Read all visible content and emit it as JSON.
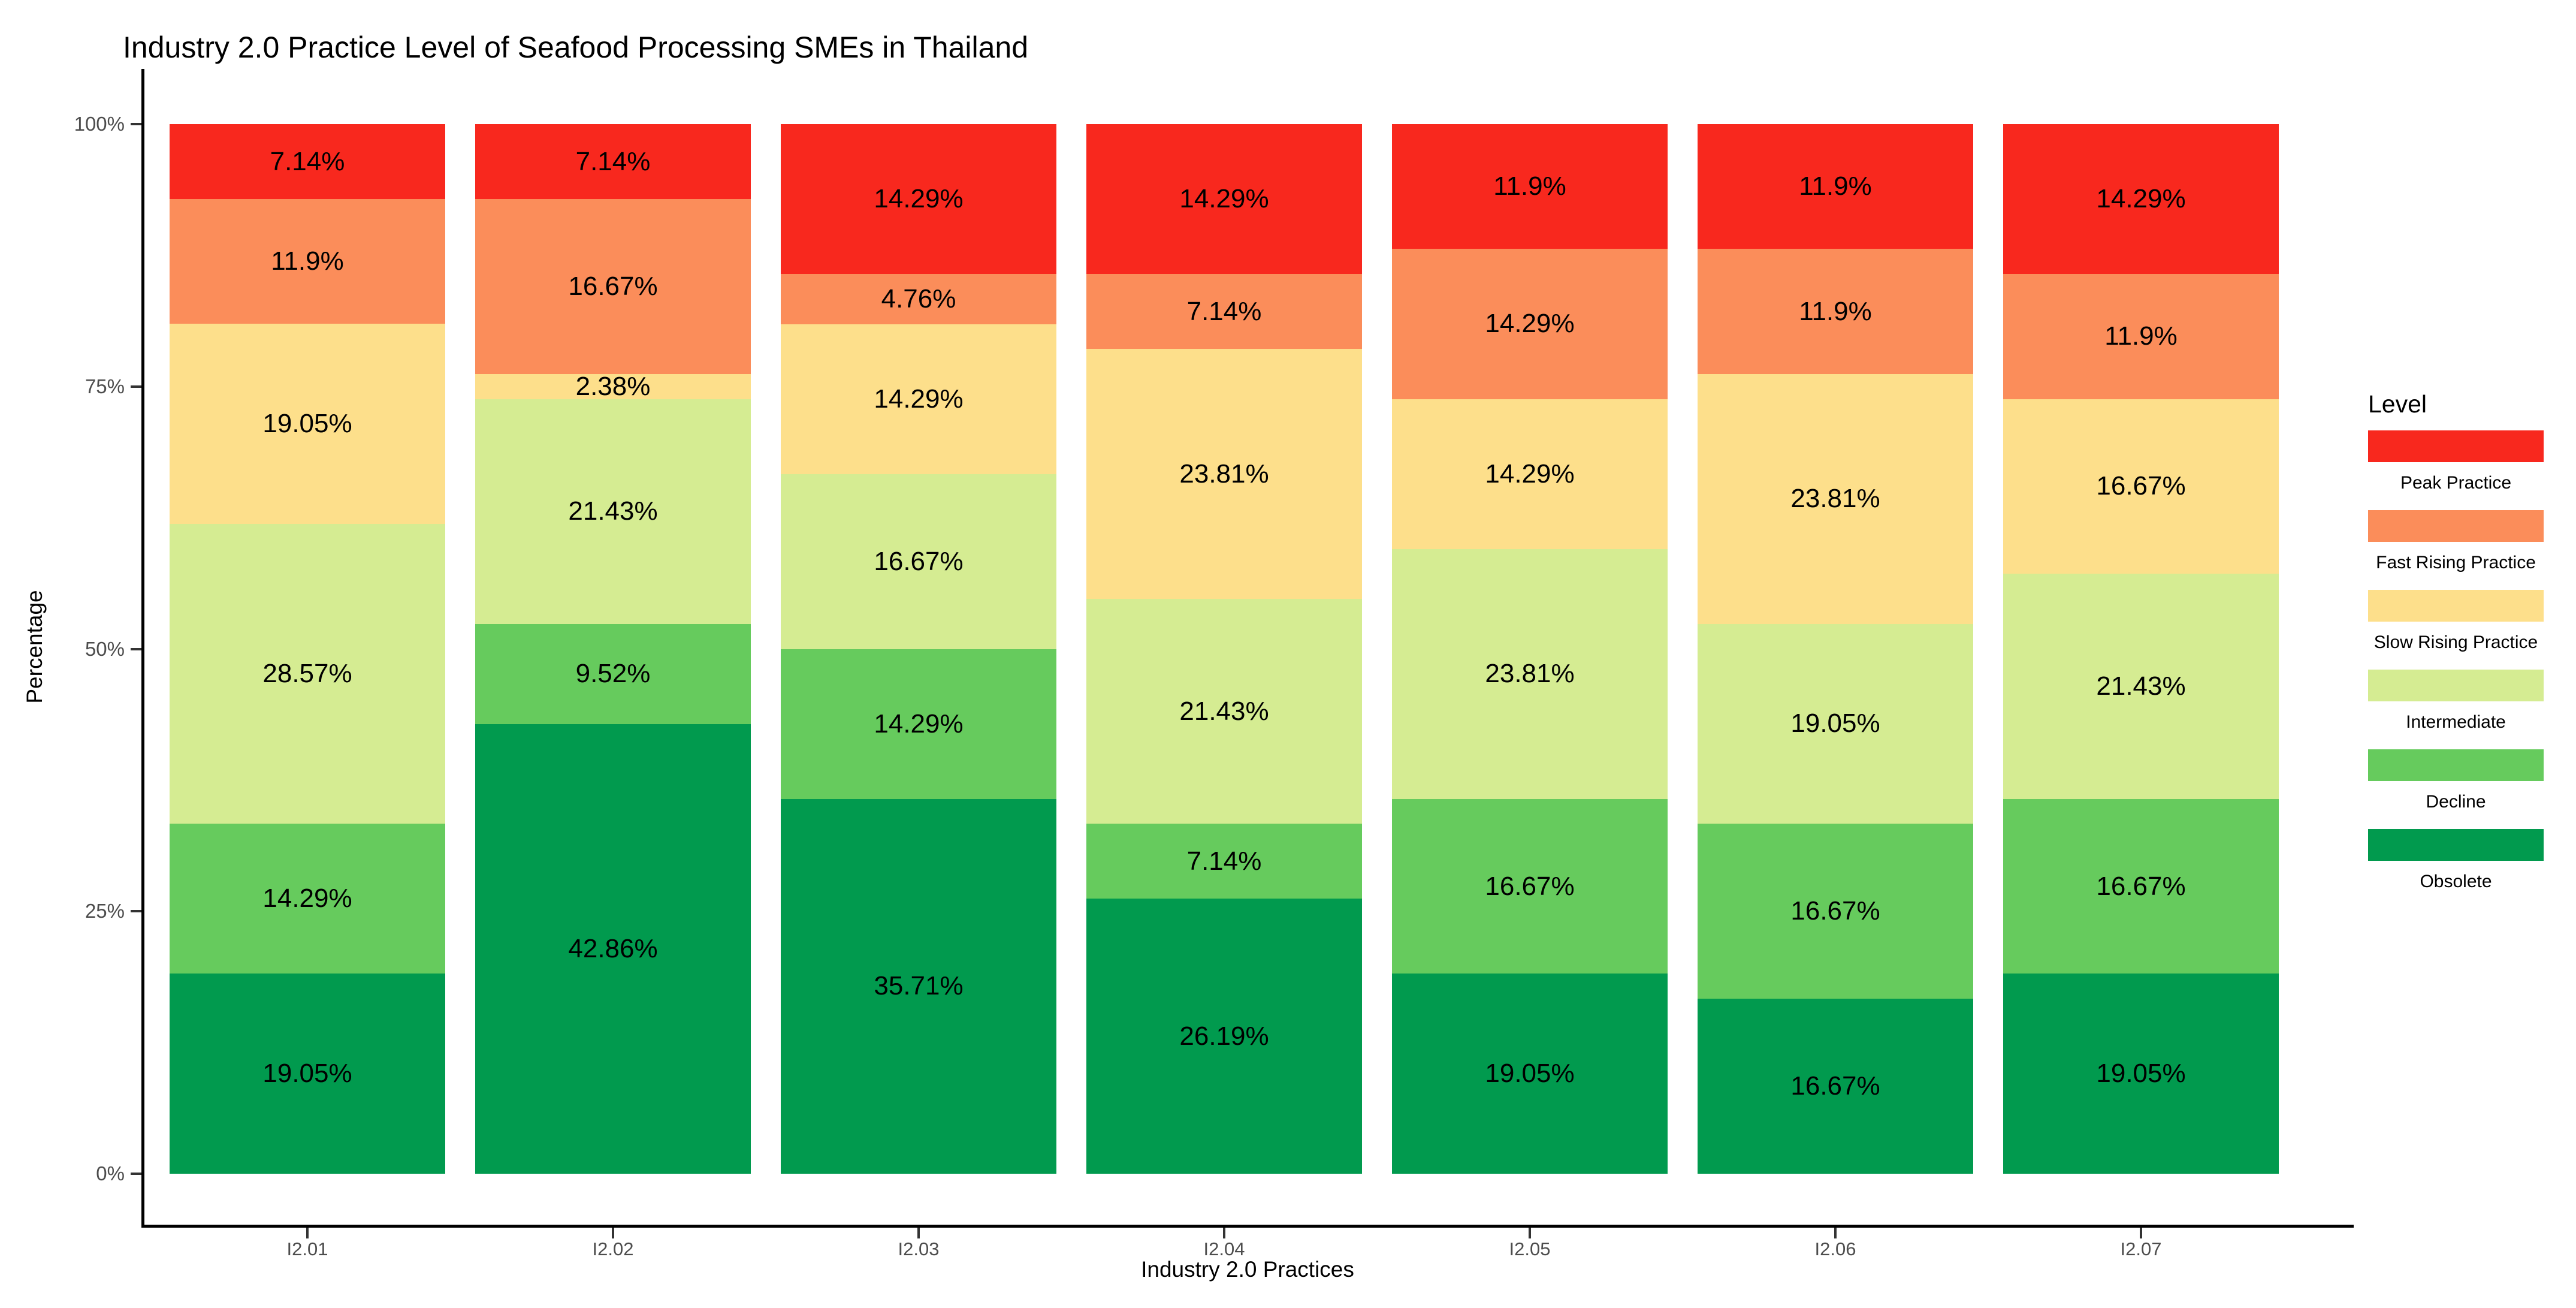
{
  "chart_data": {
    "type": "stacked-bar",
    "title": "Industry 2.0 Practice Level of Seafood Processing SMEs in Thailand",
    "xlabel": "Industry 2.0 Practices",
    "ylabel": "Percentage",
    "categories": [
      "I2.01",
      "I2.02",
      "I2.03",
      "I2.04",
      "I2.05",
      "I2.06",
      "I2.07"
    ],
    "ylim": [
      0,
      100
    ],
    "grid": false,
    "legend_position": "right",
    "legend_title": "Level",
    "y_ticks": [
      {
        "label": "0%",
        "value": 0
      },
      {
        "label": "25%",
        "value": 25
      },
      {
        "label": "50%",
        "value": 50
      },
      {
        "label": "75%",
        "value": 75
      },
      {
        "label": "100%",
        "value": 100
      }
    ],
    "series_bottom_to_top": [
      {
        "name": "Obsolete",
        "color": "#019A4E",
        "values": [
          19.05,
          42.86,
          35.71,
          26.19,
          19.05,
          16.67,
          19.05
        ],
        "labels": [
          "19.05%",
          "42.86%",
          "35.71%",
          "26.19%",
          "19.05%",
          "16.67%",
          "19.05%"
        ]
      },
      {
        "name": "Decline",
        "color": "#66CB5D",
        "values": [
          14.29,
          9.52,
          14.29,
          7.14,
          16.67,
          16.67,
          16.67
        ],
        "labels": [
          "14.29%",
          "9.52%",
          "14.29%",
          "7.14%",
          "16.67%",
          "16.67%",
          "16.67%"
        ]
      },
      {
        "name": "Intermediate",
        "color": "#D5EC92",
        "values": [
          28.57,
          21.43,
          16.67,
          21.43,
          23.81,
          19.05,
          21.43
        ],
        "labels": [
          "28.57%",
          "21.43%",
          "16.67%",
          "21.43%",
          "23.81%",
          "19.05%",
          "21.43%"
        ]
      },
      {
        "name": "Slow Rising Practice",
        "color": "#FDDF8B",
        "values": [
          19.05,
          2.38,
          14.29,
          23.81,
          14.29,
          23.81,
          16.67
        ],
        "labels": [
          "19.05%",
          "2.38%",
          "14.29%",
          "23.81%",
          "14.29%",
          "23.81%",
          "16.67%"
        ]
      },
      {
        "name": "Fast Rising Practice",
        "color": "#FB8D5A",
        "values": [
          11.9,
          16.67,
          4.76,
          7.14,
          14.29,
          11.9,
          11.9
        ],
        "labels": [
          "11.9%",
          "16.67%",
          "4.76%",
          "7.14%",
          "14.29%",
          "11.9%",
          "11.9%"
        ]
      },
      {
        "name": "Peak Practice",
        "color": "#F8281E",
        "values": [
          7.14,
          7.14,
          14.29,
          14.29,
          11.9,
          11.9,
          14.29
        ],
        "labels": [
          "7.14%",
          "7.14%",
          "14.29%",
          "14.29%",
          "11.9%",
          "11.9%",
          "14.29%"
        ]
      }
    ],
    "legend_items_top_to_bottom": [
      "Peak Practice",
      "Fast Rising Practice",
      "Slow Rising Practice",
      "Intermediate",
      "Decline",
      "Obsolete"
    ],
    "colors": {
      "axis_line": "#000000",
      "tick_label": "#4D4D4D",
      "bar_label": "#000000",
      "title": "#000000"
    }
  }
}
